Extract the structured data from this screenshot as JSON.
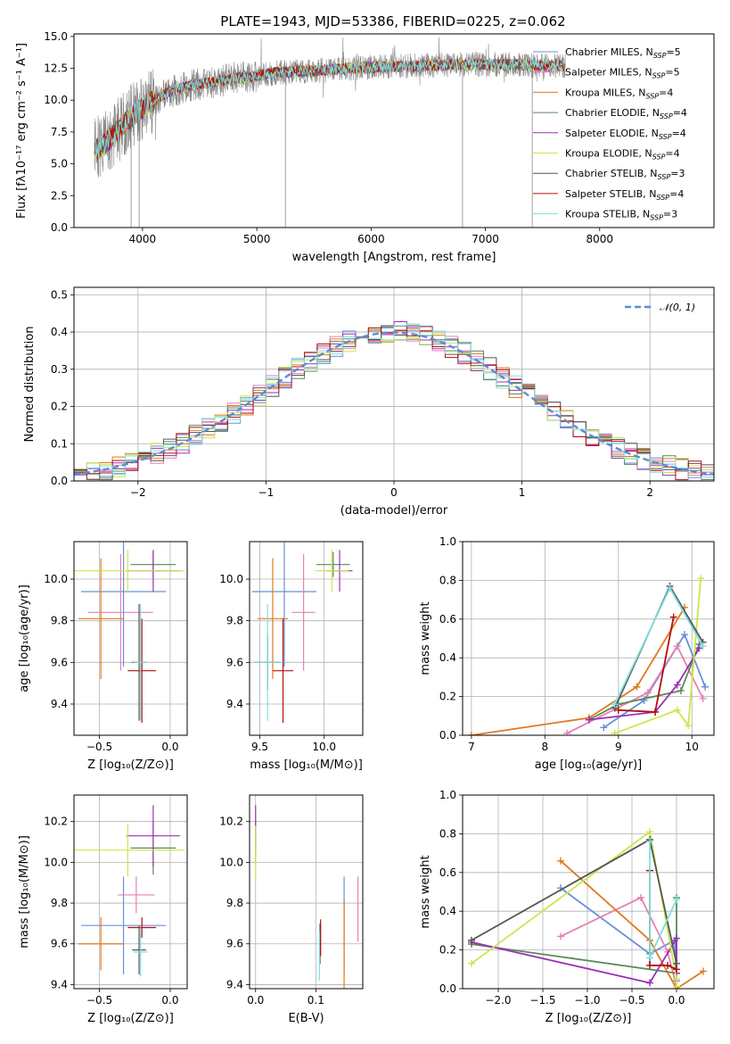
{
  "figure_title": "PLATE=1943, MJD=53386, FIBERID=0225, z=0.062",
  "colors": {
    "Chabrier MILES": "#6a8fd8",
    "Salpeter MILES": "#e87fb5",
    "Kroupa MILES": "#e07a1f",
    "Chabrier ELODIE": "#5a8a5a",
    "Salpeter ELODIE": "#9b30b5",
    "Kroupa ELODIE": "#c8e84a",
    "Chabrier STELIB": "#555555",
    "Salpeter STELIB": "#b01010",
    "Kroupa STELIB": "#7fdfe0",
    "data": "#888888",
    "gaussian": "#5b8bd6"
  },
  "chart_data": [
    {
      "id": "spectrum",
      "type": "line",
      "xlabel": "wavelength [Angstrom, rest frame]",
      "ylabel": "Flux [fλ10⁻¹⁷ erg cm⁻² s⁻¹ A⁻¹]",
      "xlim": [
        3400,
        9000
      ],
      "ylim": [
        0,
        15.2
      ],
      "xticks": [
        4000,
        5000,
        6000,
        7000,
        8000
      ],
      "xtick_labels": [
        "4000",
        "5000",
        "6000",
        "7000",
        "8000"
      ],
      "yticks": [
        0,
        2.5,
        5,
        7.5,
        10,
        12.5,
        15
      ],
      "ytick_labels": [
        "0.0",
        "2.5",
        "5.0",
        "7.5",
        "10.0",
        "12.5",
        "15.0"
      ],
      "grid": false,
      "legend_position": "right",
      "continuum": {
        "x": [
          3580,
          3700,
          3800,
          3900,
          4000,
          4100,
          4200,
          4300,
          4400,
          4600,
          4800,
          5000,
          5200,
          5500,
          5800,
          6100,
          6400,
          6800,
          7200,
          7500,
          7700
        ],
        "y": [
          6.0,
          6.8,
          7.8,
          8.7,
          9.4,
          10.0,
          10.5,
          10.8,
          11.1,
          11.4,
          11.7,
          11.9,
          12.2,
          12.3,
          12.5,
          12.6,
          12.7,
          12.8,
          12.8,
          12.7,
          12.7
        ]
      },
      "dropouts": [
        3900,
        3970,
        5250,
        6800,
        7410
      ],
      "series": [
        {
          "name": "Chabrier MILES, N_SSP=5",
          "label_main": "Chabrier MILES, N",
          "label_sub": "SSP",
          "label_tail": "=5",
          "color_key": "Chabrier MILES"
        },
        {
          "name": "Salpeter MILES, N_SSP=5",
          "label_main": "Salpeter MILES, N",
          "label_sub": "SSP",
          "label_tail": "=5",
          "color_key": "Salpeter MILES"
        },
        {
          "name": "Kroupa MILES, N_SSP=4",
          "label_main": "Kroupa MILES, N",
          "label_sub": "SSP",
          "label_tail": "=4",
          "color_key": "Kroupa MILES"
        },
        {
          "name": "Chabrier ELODIE, N_SSP=4",
          "label_main": "Chabrier ELODIE, N",
          "label_sub": "SSP",
          "label_tail": "=4",
          "color_key": "Chabrier ELODIE"
        },
        {
          "name": "Salpeter ELODIE, N_SSP=4",
          "label_main": "Salpeter ELODIE, N",
          "label_sub": "SSP",
          "label_tail": "=4",
          "color_key": "Salpeter ELODIE"
        },
        {
          "name": "Kroupa ELODIE, N_SSP=4",
          "label_main": "Kroupa ELODIE, N",
          "label_sub": "SSP",
          "label_tail": "=4",
          "color_key": "Kroupa ELODIE"
        },
        {
          "name": "Chabrier STELIB, N_SSP=3",
          "label_main": "Chabrier STELIB, N",
          "label_sub": "SSP",
          "label_tail": "=3",
          "color_key": "Chabrier STELIB"
        },
        {
          "name": "Salpeter STELIB, N_SSP=4",
          "label_main": "Salpeter STELIB, N",
          "label_sub": "SSP",
          "label_tail": "=4",
          "color_key": "Salpeter STELIB"
        },
        {
          "name": "Kroupa STELIB, N_SSP=3",
          "label_main": "Kroupa STELIB, N",
          "label_sub": "SSP",
          "label_tail": "=3",
          "color_key": "Kroupa STELIB"
        }
      ]
    },
    {
      "id": "residuals",
      "type": "line",
      "xlabel": "(data-model)/error",
      "ylabel": "Normed distribution",
      "xlim": [
        -2.5,
        2.5
      ],
      "ylim": [
        0,
        0.52
      ],
      "xticks": [
        -2,
        -1,
        0,
        1,
        2
      ],
      "xtick_labels": [
        "−2",
        "−1",
        "0",
        "1",
        "2"
      ],
      "yticks": [
        0,
        0.1,
        0.2,
        0.3,
        0.4,
        0.5
      ],
      "ytick_labels": [
        "0.0",
        "0.1",
        "0.2",
        "0.3",
        "0.4",
        "0.5"
      ],
      "grid": true,
      "legend_position": "top-right",
      "legend": "𝒩(0, 1)",
      "bin_width": 0.1,
      "bin_start": -2.5,
      "histogram_spread": 0.03
    },
    {
      "id": "age-vs-Z",
      "type": "scatter",
      "xlabel": "Z [log₁₀(Z/Z⊙)]",
      "ylabel": "age  [log₁₀(age/yr)]",
      "xlim": [
        -0.68,
        0.12
      ],
      "ylim": [
        9.25,
        10.18
      ],
      "xticks": [
        -0.5,
        0.0
      ],
      "xtick_labels": [
        "−0.5",
        "0.0"
      ],
      "yticks": [
        9.4,
        9.6,
        9.8,
        10.0
      ],
      "ytick_labels": [
        "9.4",
        "9.6",
        "9.8",
        "10.0"
      ],
      "grid": true,
      "points": [
        {
          "color_key": "Chabrier MILES",
          "x": -0.33,
          "y": 9.94,
          "xerr": 0.3,
          "yerr": 0.36
        },
        {
          "color_key": "Salpeter MILES",
          "x": -0.35,
          "y": 9.84,
          "xerr": 0.23,
          "yerr": 0.28
        },
        {
          "color_key": "Kroupa MILES",
          "x": -0.49,
          "y": 9.81,
          "xerr": 0.16,
          "yerr": 0.29
        },
        {
          "color_key": "Chabrier ELODIE",
          "x": -0.12,
          "y": 10.07,
          "xerr": 0.16,
          "yerr": 0.06
        },
        {
          "color_key": "Salpeter ELODIE",
          "x": -0.12,
          "y": 10.04,
          "xerr": 0.19,
          "yerr": 0.1
        },
        {
          "color_key": "Kroupa ELODIE",
          "x": -0.3,
          "y": 10.04,
          "xerr": 0.4,
          "yerr": 0.1
        },
        {
          "color_key": "Chabrier STELIB",
          "x": -0.22,
          "y": 9.6,
          "xerr": 0.05,
          "yerr": 0.28
        },
        {
          "color_key": "Salpeter STELIB",
          "x": -0.2,
          "y": 9.56,
          "xerr": 0.1,
          "yerr": 0.25
        },
        {
          "color_key": "Kroupa STELIB",
          "x": -0.21,
          "y": 9.6,
          "xerr": 0.05,
          "yerr": 0.28
        }
      ]
    },
    {
      "id": "age-vs-mass",
      "type": "scatter",
      "xlabel": "mass [log₁₀(M/M⊙)]",
      "ylabel": "",
      "xlim": [
        9.42,
        10.3
      ],
      "ylim": [
        9.25,
        10.18
      ],
      "xticks": [
        9.5,
        10.0
      ],
      "xtick_labels": [
        "9.5",
        "10.0"
      ],
      "yticks": [
        9.4,
        9.6,
        9.8,
        10.0
      ],
      "ytick_labels": [
        "9.4",
        "9.6",
        "9.8",
        "10.0"
      ],
      "grid": true,
      "points": [
        {
          "color_key": "Chabrier MILES",
          "x": 9.69,
          "y": 9.94,
          "xerr": 0.25,
          "yerr": 0.36
        },
        {
          "color_key": "Salpeter MILES",
          "x": 9.84,
          "y": 9.84,
          "xerr": 0.09,
          "yerr": 0.28
        },
        {
          "color_key": "Kroupa MILES",
          "x": 9.6,
          "y": 9.81,
          "xerr": 0.12,
          "yerr": 0.29
        },
        {
          "color_key": "Chabrier ELODIE",
          "x": 10.07,
          "y": 10.07,
          "xerr": 0.13,
          "yerr": 0.06
        },
        {
          "color_key": "Salpeter ELODIE",
          "x": 10.12,
          "y": 10.04,
          "xerr": 0.1,
          "yerr": 0.1
        },
        {
          "color_key": "Kroupa ELODIE",
          "x": 10.06,
          "y": 10.04,
          "xerr": 0.13,
          "yerr": 0.1
        },
        {
          "color_key": "Chabrier STELIB",
          "x": 9.56,
          "y": 9.6,
          "xerr": 0.1,
          "yerr": 0.13
        },
        {
          "color_key": "Salpeter STELIB",
          "x": 9.68,
          "y": 9.56,
          "xerr": 0.08,
          "yerr": 0.25
        },
        {
          "color_key": "Kroupa STELIB",
          "x": 9.56,
          "y": 9.6,
          "xerr": 0.12,
          "yerr": 0.28
        }
      ]
    },
    {
      "id": "weight-vs-age",
      "type": "line",
      "xlabel": "age  [log₁₀(age/yr)]",
      "ylabel": "mass weight",
      "xlim": [
        6.88,
        10.3
      ],
      "ylim": [
        0,
        1.0
      ],
      "xticks": [
        7,
        8,
        9,
        10
      ],
      "xtick_labels": [
        "7",
        "8",
        "9",
        "10"
      ],
      "yticks": [
        0,
        0.2,
        0.4,
        0.6,
        0.8,
        1.0
      ],
      "ytick_labels": [
        "0.0",
        "0.2",
        "0.4",
        "0.6",
        "0.8",
        "1.0"
      ],
      "grid": true,
      "series": [
        {
          "color_key": "Chabrier MILES",
          "x": [
            8.8,
            9.35,
            9.9,
            10.18
          ],
          "y": [
            0.04,
            0.18,
            0.52,
            0.25
          ]
        },
        {
          "color_key": "Salpeter MILES",
          "x": [
            8.3,
            9.4,
            9.8,
            10.15
          ],
          "y": [
            0.01,
            0.22,
            0.46,
            0.19
          ]
        },
        {
          "color_key": "Kroupa MILES",
          "x": [
            7.0,
            8.6,
            9.25,
            9.9
          ],
          "y": [
            0.0,
            0.09,
            0.25,
            0.66
          ]
        },
        {
          "color_key": "Chabrier ELODIE",
          "x": [
            8.6,
            9.0,
            9.85,
            10.1
          ],
          "y": [
            0.08,
            0.16,
            0.23,
            0.47
          ]
        },
        {
          "color_key": "Salpeter ELODIE",
          "x": [
            8.6,
            9.5,
            9.8,
            10.1
          ],
          "y": [
            0.08,
            0.12,
            0.26,
            0.45
          ]
        },
        {
          "color_key": "Kroupa ELODIE",
          "x": [
            8.95,
            9.8,
            9.95,
            10.12
          ],
          "y": [
            0.01,
            0.13,
            0.05,
            0.81
          ]
        },
        {
          "color_key": "Chabrier STELIB",
          "x": [
            8.95,
            9.7,
            10.15
          ],
          "y": [
            0.14,
            0.77,
            0.48
          ]
        },
        {
          "color_key": "Salpeter STELIB",
          "x": [
            9.0,
            9.5,
            9.75
          ],
          "y": [
            0.13,
            0.12,
            0.61
          ]
        },
        {
          "color_key": "Kroupa STELIB",
          "x": [
            8.95,
            9.7,
            10.15
          ],
          "y": [
            0.16,
            0.76,
            0.46
          ]
        }
      ]
    },
    {
      "id": "mass-vs-Z",
      "type": "scatter",
      "xlabel": "Z [log₁₀(Z/Z⊙)]",
      "ylabel": "mass [log₁₀(M/M⊙)]",
      "xlim": [
        -0.68,
        0.12
      ],
      "ylim": [
        9.38,
        10.33
      ],
      "xticks": [
        -0.5,
        0.0
      ],
      "xtick_labels": [
        "−0.5",
        "0.0"
      ],
      "yticks": [
        9.4,
        9.6,
        9.8,
        10.0,
        10.2
      ],
      "ytick_labels": [
        "9.4",
        "9.6",
        "9.8",
        "10.0",
        "10.2"
      ],
      "grid": true,
      "points": [
        {
          "color_key": "Chabrier MILES",
          "x": -0.33,
          "y": 9.69,
          "xerr": 0.3,
          "yerr": 0.24
        },
        {
          "color_key": "Salpeter MILES",
          "x": -0.24,
          "y": 9.84,
          "xerr": 0.13,
          "yerr": 0.09
        },
        {
          "color_key": "Kroupa MILES",
          "x": -0.49,
          "y": 9.6,
          "xerr": 0.16,
          "yerr": 0.13
        },
        {
          "color_key": "Chabrier ELODIE",
          "x": -0.12,
          "y": 10.07,
          "xerr": 0.16,
          "yerr": 0.13
        },
        {
          "color_key": "Salpeter ELODIE",
          "x": -0.12,
          "y": 10.13,
          "xerr": 0.19,
          "yerr": 0.15
        },
        {
          "color_key": "Kroupa ELODIE",
          "x": -0.3,
          "y": 10.06,
          "xerr": 0.4,
          "yerr": 0.13
        },
        {
          "color_key": "Chabrier STELIB",
          "x": -0.22,
          "y": 9.57,
          "xerr": 0.05,
          "yerr": 0.12
        },
        {
          "color_key": "Salpeter STELIB",
          "x": -0.2,
          "y": 9.68,
          "xerr": 0.1,
          "yerr": 0.05
        },
        {
          "color_key": "Kroupa STELIB",
          "x": -0.21,
          "y": 9.56,
          "xerr": 0.05,
          "yerr": 0.12
        }
      ]
    },
    {
      "id": "mass-vs-EBV",
      "type": "scatter",
      "xlabel": "E(B-V)",
      "ylabel": "",
      "xlim": [
        -0.01,
        0.178
      ],
      "ylim": [
        9.38,
        10.33
      ],
      "xticks": [
        0.0,
        0.1
      ],
      "xtick_labels": [
        "0.0",
        "0.1"
      ],
      "yticks": [
        9.4,
        9.6,
        9.8,
        10.0,
        10.2
      ],
      "ytick_labels": [
        "9.4",
        "9.6",
        "9.8",
        "10.0",
        "10.2"
      ],
      "grid": true,
      "points": [
        {
          "color_key": "Chabrier MILES",
          "x": 0.147,
          "y": 9.69,
          "xerr": 0.0,
          "yerr": 0.24
        },
        {
          "color_key": "Salpeter MILES",
          "x": 0.17,
          "y": 9.77,
          "xerr": 0.0,
          "yerr": 0.16
        },
        {
          "color_key": "Kroupa MILES",
          "x": 0.147,
          "y": 9.6,
          "xerr": 0.0,
          "yerr": 0.22
        },
        {
          "color_key": "Chabrier ELODIE",
          "x": 0.0,
          "y": 10.1,
          "xerr": 0.0,
          "yerr": 0.1
        },
        {
          "color_key": "Salpeter ELODIE",
          "x": 0.0,
          "y": 10.18,
          "xerr": 0.0,
          "yerr": 0.1
        },
        {
          "color_key": "Kroupa ELODIE",
          "x": 0.0,
          "y": 10.05,
          "xerr": 0.0,
          "yerr": 0.13
        },
        {
          "color_key": "Chabrier STELIB",
          "x": 0.107,
          "y": 9.6,
          "xerr": 0.0,
          "yerr": 0.1
        },
        {
          "color_key": "Salpeter STELIB",
          "x": 0.108,
          "y": 9.63,
          "xerr": 0.0,
          "yerr": 0.09
        },
        {
          "color_key": "Kroupa STELIB",
          "x": 0.106,
          "y": 9.54,
          "xerr": 0.0,
          "yerr": 0.12
        }
      ]
    },
    {
      "id": "weight-vs-Z",
      "type": "line",
      "xlabel": "Z [log₁₀(Z/Z⊙)]",
      "ylabel": "mass weight",
      "xlim": [
        -2.4,
        0.42
      ],
      "ylim": [
        0,
        1.0
      ],
      "xticks": [
        -2.0,
        -1.5,
        -1.0,
        -0.5,
        0.0
      ],
      "xtick_labels": [
        "−2.0",
        "−1.5",
        "−1.0",
        "−0.5",
        "0.0"
      ],
      "yticks": [
        0,
        0.2,
        0.4,
        0.6,
        0.8,
        1.0
      ],
      "ytick_labels": [
        "0.0",
        "0.2",
        "0.4",
        "0.6",
        "0.8",
        "1.0"
      ],
      "grid": true,
      "series": [
        {
          "color_key": "Chabrier MILES",
          "x": [
            -1.3,
            -0.3,
            -0.02,
            0.0
          ],
          "y": [
            0.52,
            0.18,
            0.25,
            0.04
          ]
        },
        {
          "color_key": "Salpeter MILES",
          "x": [
            -1.3,
            -0.4,
            -0.1,
            0.0
          ],
          "y": [
            0.27,
            0.47,
            0.19,
            0.01
          ]
        },
        {
          "color_key": "Kroupa MILES",
          "x": [
            -1.3,
            -0.3,
            0.0,
            0.3
          ],
          "y": [
            0.66,
            0.25,
            0.0,
            0.09
          ]
        },
        {
          "color_key": "Chabrier ELODIE",
          "x": [
            -2.3,
            0.0,
            0.0
          ],
          "y": [
            0.23,
            0.08,
            0.47
          ]
        },
        {
          "color_key": "Salpeter ELODIE",
          "x": [
            -2.3,
            -0.3,
            0.0,
            0.0
          ],
          "y": [
            0.24,
            0.03,
            0.26,
            0.08
          ]
        },
        {
          "color_key": "Kroupa ELODIE",
          "x": [
            -2.3,
            -0.3,
            0.0,
            0.0
          ],
          "y": [
            0.13,
            0.81,
            0.05,
            0.01
          ]
        },
        {
          "color_key": "Chabrier STELIB",
          "x": [
            -2.3,
            -0.3,
            0.0
          ],
          "y": [
            0.25,
            0.77,
            0.13
          ]
        },
        {
          "color_key": "Salpeter STELIB",
          "x": [
            -0.3,
            -0.3,
            -0.1,
            0.0
          ],
          "y": [
            0.61,
            0.12,
            0.12,
            0.1
          ]
        },
        {
          "color_key": "Kroupa STELIB",
          "x": [
            -0.3,
            -0.3,
            0.0
          ],
          "y": [
            0.76,
            0.16,
            0.46
          ]
        }
      ]
    }
  ]
}
